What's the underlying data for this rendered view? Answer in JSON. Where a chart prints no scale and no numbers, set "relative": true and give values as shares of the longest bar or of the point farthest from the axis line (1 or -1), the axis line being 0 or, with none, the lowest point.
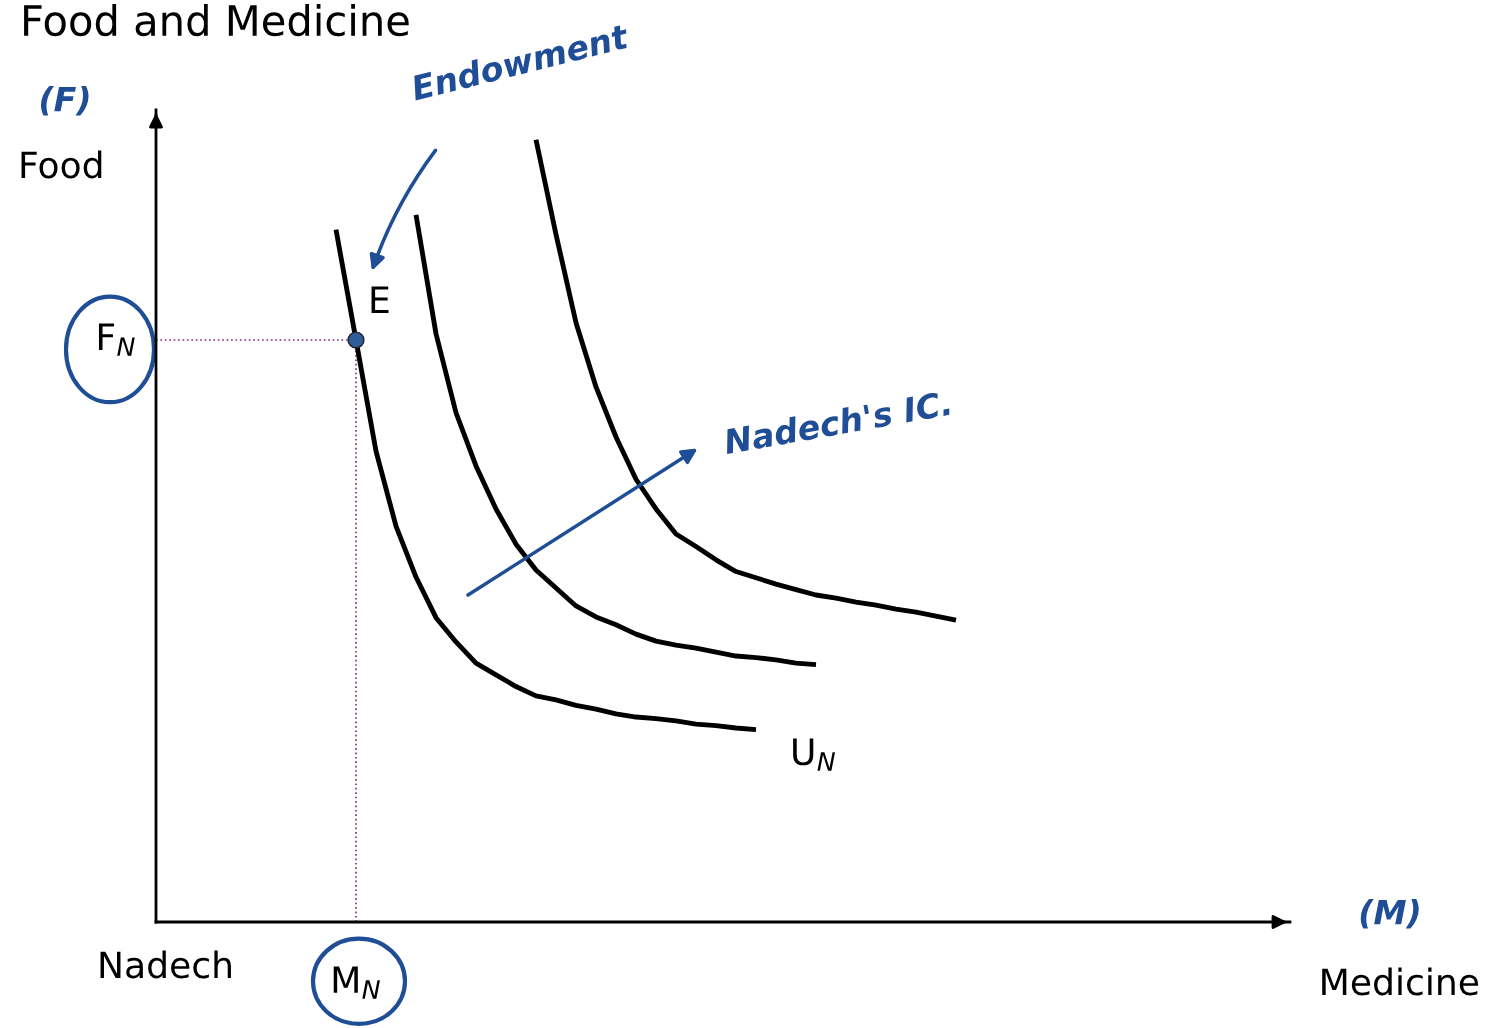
{
  "chart_data": {
    "type": "line",
    "title": "Food and Medicine",
    "xlabel": "Medicine",
    "ylabel": "Food",
    "relative": true,
    "marker": "none",
    "line_style": "solid",
    "categories": [
      null,
      null,
      null,
      null,
      null,
      null,
      null,
      null,
      null,
      null,
      null,
      null,
      null,
      null,
      null,
      null,
      null,
      null,
      null,
      null,
      null,
      null,
      null,
      null,
      null,
      null,
      null,
      null,
      null,
      null,
      null,
      null,
      null,
      null,
      null,
      null,
      null,
      null,
      null,
      null,
      null,
      null,
      null,
      null,
      null,
      null,
      null,
      null,
      null,
      null,
      null,
      null,
      null,
      null,
      null,
      null,
      null
    ],
    "series": [
      {
        "name": "U$_{N}$",
        "color": "#000000",
        "values": [
          null,
          null,
          null,
          null,
          null,
          null,
          null,
          null,
          null,
          0.885,
          0.744,
          0.602,
          0.506,
          0.441,
          0.389,
          0.358,
          0.331,
          0.316,
          0.301,
          0.289,
          0.284,
          0.277,
          0.272,
          0.266,
          0.262,
          0.26,
          0.257,
          0.253,
          0.251,
          0.248,
          0.246,
          null,
          null,
          null,
          null,
          null,
          null,
          null,
          null,
          null,
          null,
          null,
          null,
          null,
          null,
          null,
          null,
          null,
          null,
          null,
          null,
          null,
          null,
          null,
          null,
          null,
          null
        ]
      },
      {
        "color": "#000000",
        "values": [
          null,
          null,
          null,
          null,
          null,
          null,
          null,
          null,
          null,
          null,
          null,
          null,
          null,
          0.904,
          0.752,
          0.651,
          0.583,
          0.528,
          0.483,
          0.45,
          0.427,
          0.404,
          0.39,
          0.38,
          0.368,
          0.359,
          0.354,
          0.35,
          0.345,
          0.34,
          0.338,
          0.335,
          0.331,
          0.329,
          null,
          null,
          null,
          null,
          null,
          null,
          null,
          null,
          null,
          null,
          null,
          null,
          null,
          null,
          null,
          null,
          null,
          null,
          null,
          null,
          null,
          null,
          null
        ]
      },
      {
        "color": "#000000",
        "values": [
          null,
          null,
          null,
          null,
          null,
          null,
          null,
          null,
          null,
          null,
          null,
          null,
          null,
          null,
          null,
          null,
          null,
          null,
          null,
          1.0,
          0.879,
          0.766,
          0.684,
          0.62,
          0.566,
          0.528,
          0.496,
          0.48,
          0.463,
          0.448,
          0.44,
          0.432,
          0.425,
          0.418,
          0.414,
          0.409,
          0.405,
          0.4,
          0.396,
          0.391,
          0.386,
          null,
          null,
          null,
          null,
          null,
          null,
          null,
          null,
          null,
          null,
          null,
          null,
          null,
          null,
          null,
          null
        ]
      }
    ],
    "ref_lines": [
      {
        "axis": "x",
        "label": "M$_{N}$",
        "color": "#8b2a7a",
        "line_style": "dotted"
      },
      {
        "axis": "y",
        "value": 0.744,
        "label": "F$_{N}$",
        "color": "#8b2a7a",
        "line_style": "dotted"
      }
    ],
    "annotations": [
      "E",
      "Endowment",
      "Nadech's IC.",
      "(F)",
      "(M)",
      "Nadech"
    ]
  }
}
